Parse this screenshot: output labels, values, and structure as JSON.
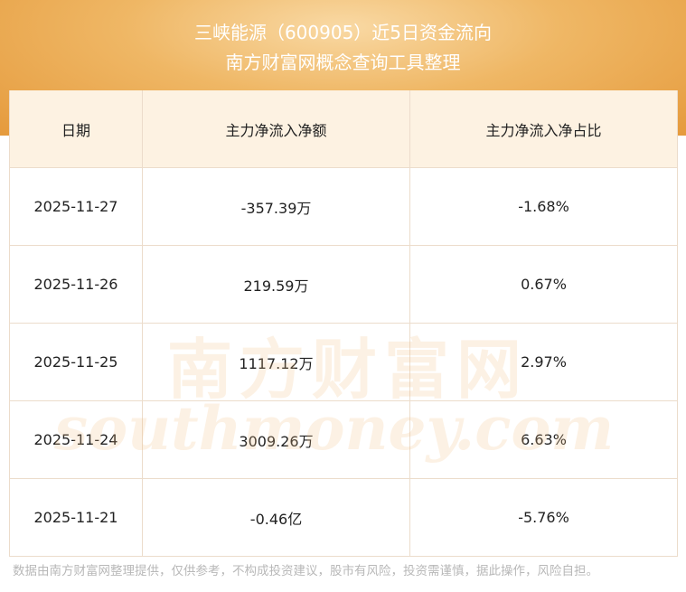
{
  "header": {
    "title": "三峡能源（600905）近5日资金流向",
    "subtitle": "南方财富网概念查询工具整理"
  },
  "table": {
    "columns": [
      "日期",
      "主力净流入净额",
      "主力净流入净占比"
    ],
    "rows": [
      [
        "2025-11-27",
        "-357.39万",
        "-1.68%"
      ],
      [
        "2025-11-26",
        "219.59万",
        "0.67%"
      ],
      [
        "2025-11-25",
        "1117.12万",
        "2.97%"
      ],
      [
        "2025-11-24",
        "3009.26万",
        "6.63%"
      ],
      [
        "2025-11-21",
        "-0.46亿",
        "-5.76%"
      ]
    ]
  },
  "watermark": {
    "name": "南方财富网",
    "site": "southmoney.com"
  },
  "footer": "数据由南方财富网整理提供，仅供参考，不构成投资建议，股市有风险，投资需谨慎，据此操作，风险自担。"
}
